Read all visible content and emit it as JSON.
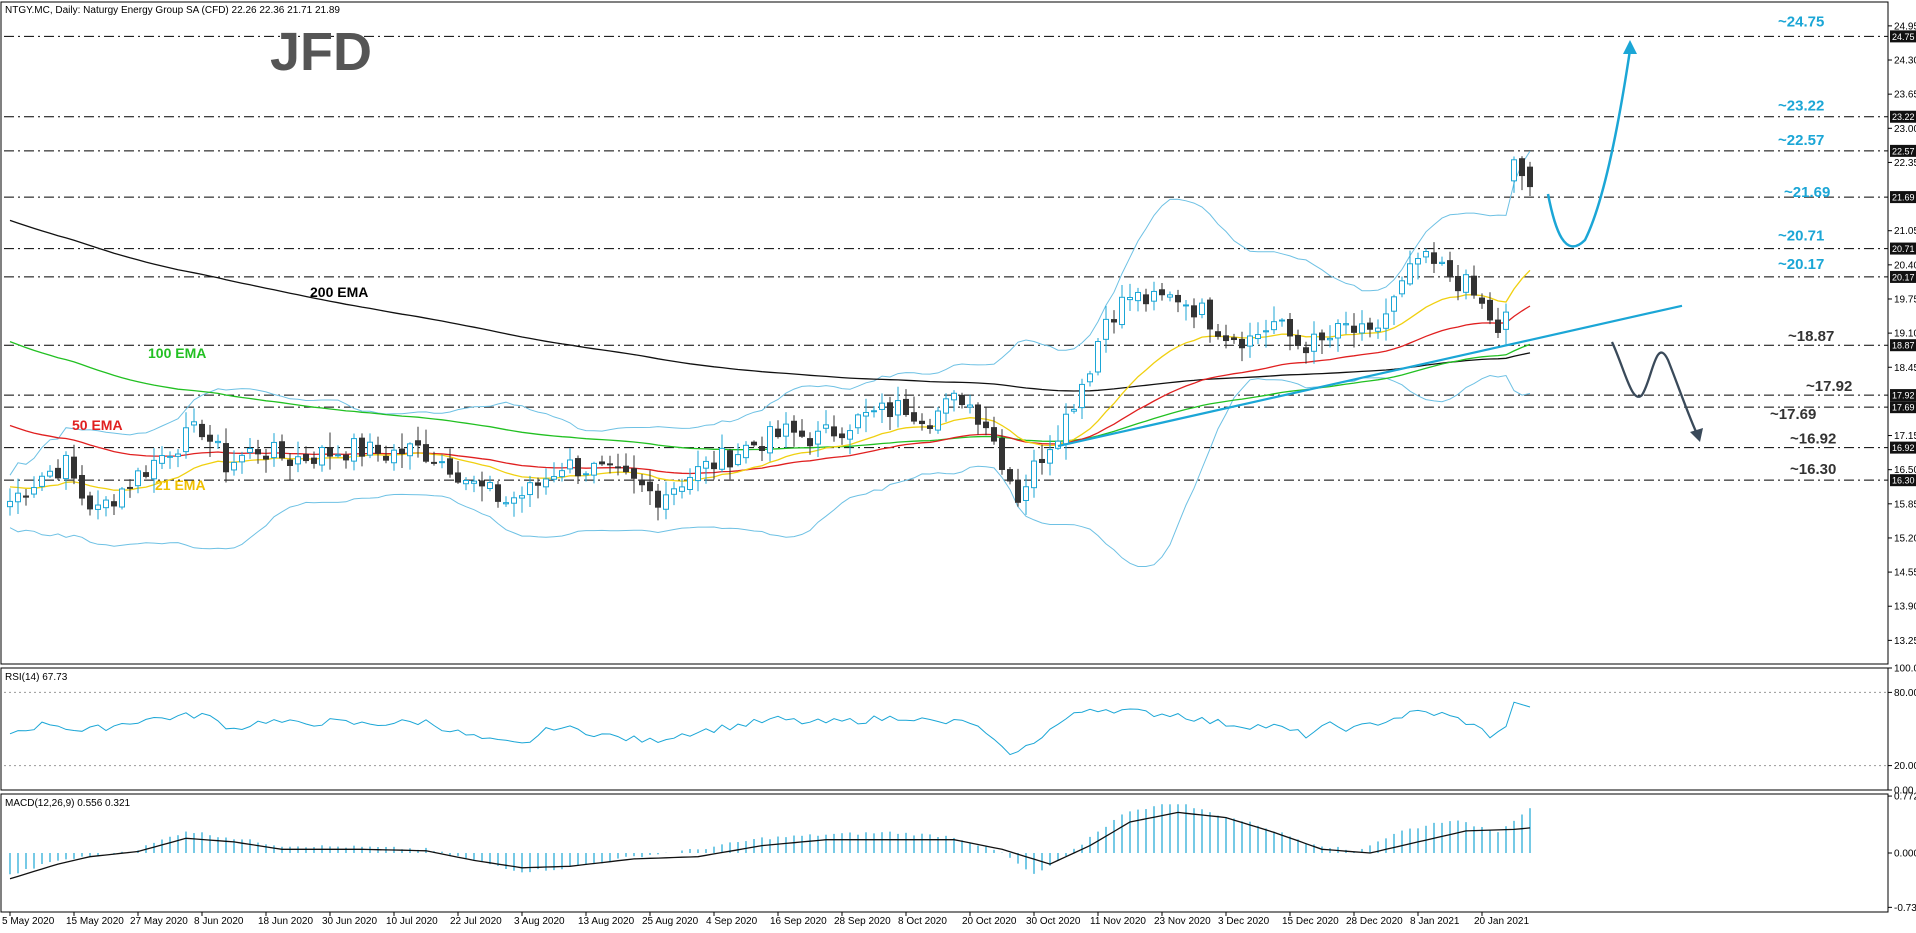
{
  "chart_data": {
    "type": "candlestick",
    "title": "NTGY.MC, Daily:  Naturgy Energy Group SA (CFD)  22.26 22.36 21.71 21.89",
    "logo_text": "JFD",
    "price_axis": {
      "min": 12.8,
      "max": 25.1,
      "ticks": [
        "24.95",
        "24.30",
        "23.65",
        "23.00",
        "22.35",
        "21.05",
        "20.40",
        "19.75",
        "19.10",
        "18.45",
        "17.15",
        "16.50",
        "15.85",
        "15.20",
        "14.55",
        "13.90",
        "13.25"
      ]
    },
    "x_labels": [
      {
        "i": 0,
        "label": "5 May 2020"
      },
      {
        "i": 8,
        "label": "15 May 2020"
      },
      {
        "i": 16,
        "label": "27 May 2020"
      },
      {
        "i": 24,
        "label": "8 Jun 2020"
      },
      {
        "i": 32,
        "label": "18 Jun 2020"
      },
      {
        "i": 40,
        "label": "30 Jun 2020"
      },
      {
        "i": 48,
        "label": "10 Jul 2020"
      },
      {
        "i": 56,
        "label": "22 Jul 2020"
      },
      {
        "i": 64,
        "label": "3 Aug 2020"
      },
      {
        "i": 72,
        "label": "13 Aug 2020"
      },
      {
        "i": 80,
        "label": "25 Aug 2020"
      },
      {
        "i": 88,
        "label": "4 Sep 2020"
      },
      {
        "i": 96,
        "label": "16 Sep 2020"
      },
      {
        "i": 104,
        "label": "28 Sep 2020"
      },
      {
        "i": 112,
        "label": "8 Oct 2020"
      },
      {
        "i": 120,
        "label": "20 Oct 2020"
      },
      {
        "i": 128,
        "label": "30 Oct 2020"
      },
      {
        "i": 136,
        "label": "11 Nov 2020"
      },
      {
        "i": 144,
        "label": "23 Nov 2020"
      },
      {
        "i": 152,
        "label": "3 Dec 2020"
      },
      {
        "i": 160,
        "label": "15 Dec 2020"
      },
      {
        "i": 168,
        "label": "28 Dec 2020"
      },
      {
        "i": 176,
        "label": "8 Jan 2021"
      },
      {
        "i": 184,
        "label": "20 Jan 2021"
      }
    ],
    "n_bars": 191,
    "close_anchors": [
      [
        0,
        15.9
      ],
      [
        4,
        16.4
      ],
      [
        7,
        16.6
      ],
      [
        9,
        16.0
      ],
      [
        11,
        15.7
      ],
      [
        13,
        16.0
      ],
      [
        16,
        16.4
      ],
      [
        20,
        16.9
      ],
      [
        24,
        17.3
      ],
      [
        27,
        16.6
      ],
      [
        31,
        16.9
      ],
      [
        35,
        16.7
      ],
      [
        39,
        16.8
      ],
      [
        43,
        16.9
      ],
      [
        47,
        16.8
      ],
      [
        51,
        16.9
      ],
      [
        55,
        16.6
      ],
      [
        58,
        16.2
      ],
      [
        62,
        15.9
      ],
      [
        65,
        16.1
      ],
      [
        69,
        16.6
      ],
      [
        73,
        16.5
      ],
      [
        77,
        16.3
      ],
      [
        81,
        16.0
      ],
      [
        85,
        16.4
      ],
      [
        89,
        16.7
      ],
      [
        93,
        17.0
      ],
      [
        97,
        17.2
      ],
      [
        101,
        17.1
      ],
      [
        105,
        17.4
      ],
      [
        109,
        17.6
      ],
      [
        112,
        17.7
      ],
      [
        115,
        17.5
      ],
      [
        119,
        17.9
      ],
      [
        122,
        17.4
      ],
      [
        124,
        16.7
      ],
      [
        126,
        16.0
      ],
      [
        129,
        16.8
      ],
      [
        132,
        17.5
      ],
      [
        135,
        18.5
      ],
      [
        137,
        19.4
      ],
      [
        140,
        19.8
      ],
      [
        143,
        19.7
      ],
      [
        146,
        19.8
      ],
      [
        149,
        19.5
      ],
      [
        152,
        19.1
      ],
      [
        155,
        19.0
      ],
      [
        158,
        19.3
      ],
      [
        161,
        18.9
      ],
      [
        164,
        18.9
      ],
      [
        167,
        19.2
      ],
      [
        170,
        19.0
      ],
      [
        173,
        19.7
      ],
      [
        176,
        20.5
      ],
      [
        179,
        20.3
      ],
      [
        182,
        20.0
      ],
      [
        185,
        19.4
      ],
      [
        186,
        19.0
      ],
      [
        187,
        19.5
      ],
      [
        188,
        22.4
      ],
      [
        189,
        22.1
      ],
      [
        190,
        21.89
      ]
    ],
    "ema_labels": [
      "200 EMA",
      "100 EMA",
      "50 EMA",
      "21 EMA"
    ],
    "levels": [
      {
        "value": 24.75,
        "label": "~24.75",
        "dash": true,
        "color": "#1ba6d6"
      },
      {
        "value": 23.22,
        "label": "~23.22",
        "dash": true,
        "color": "#1ba6d6"
      },
      {
        "value": 22.57,
        "label": "~22.57",
        "dash": true,
        "color": "#1ba6d6"
      },
      {
        "value": 21.69,
        "label": "~21.69",
        "dash": true,
        "color": "#1ba6d6"
      },
      {
        "value": 20.71,
        "label": "~20.71",
        "dash": true,
        "color": "#1ba6d6"
      },
      {
        "value": 20.17,
        "label": "~20.17",
        "dash": true,
        "color": "#1ba6d6"
      },
      {
        "value": 18.87,
        "label": "~18.87",
        "dash": true,
        "color": "#333333"
      },
      {
        "value": 17.92,
        "label": "~17.92",
        "dash": true,
        "color": "#333333"
      },
      {
        "value": 17.69,
        "label": "~17.69",
        "dash": true,
        "color": "#333333"
      },
      {
        "value": 16.92,
        "label": "~16.92",
        "dash": true,
        "color": "#333333"
      },
      {
        "value": 16.3,
        "label": "~16.30",
        "dash": true,
        "color": "#333333"
      }
    ],
    "axis_tags": [
      "24.75",
      "23.22",
      "22.57",
      "21.69",
      "20.71",
      "20.17",
      "18.87",
      "17.92",
      "17.69",
      "16.92",
      "16.30"
    ],
    "rsi": {
      "title": "RSI(14) 67.73",
      "ticks": [
        "100.00",
        "80.00",
        "20.00",
        "0.00"
      ],
      "min": 0,
      "max": 100,
      "anchors": [
        [
          0,
          47
        ],
        [
          5,
          55
        ],
        [
          9,
          48
        ],
        [
          13,
          53
        ],
        [
          17,
          58
        ],
        [
          21,
          60
        ],
        [
          24,
          62
        ],
        [
          28,
          50
        ],
        [
          32,
          57
        ],
        [
          36,
          54
        ],
        [
          40,
          56
        ],
        [
          44,
          54
        ],
        [
          48,
          55
        ],
        [
          52,
          56
        ],
        [
          56,
          47
        ],
        [
          60,
          40
        ],
        [
          64,
          37
        ],
        [
          68,
          52
        ],
        [
          72,
          48
        ],
        [
          76,
          43
        ],
        [
          80,
          40
        ],
        [
          84,
          46
        ],
        [
          88,
          50
        ],
        [
          92,
          54
        ],
        [
          96,
          58
        ],
        [
          100,
          55
        ],
        [
          104,
          56
        ],
        [
          108,
          58
        ],
        [
          112,
          60
        ],
        [
          116,
          55
        ],
        [
          120,
          56
        ],
        [
          122,
          45
        ],
        [
          124,
          33
        ],
        [
          126,
          30
        ],
        [
          129,
          45
        ],
        [
          132,
          58
        ],
        [
          135,
          67
        ],
        [
          138,
          66
        ],
        [
          142,
          63
        ],
        [
          146,
          62
        ],
        [
          150,
          56
        ],
        [
          154,
          53
        ],
        [
          158,
          52
        ],
        [
          162,
          45
        ],
        [
          165,
          53
        ],
        [
          168,
          50
        ],
        [
          172,
          57
        ],
        [
          176,
          64
        ],
        [
          179,
          62
        ],
        [
          182,
          56
        ],
        [
          185,
          45
        ],
        [
          187,
          52
        ],
        [
          188,
          72
        ],
        [
          190,
          68
        ]
      ]
    },
    "macd": {
      "title": "MACD(12,26,9) 0.556 0.321",
      "ticks": [
        "0.772",
        "0.000",
        "-0.737"
      ],
      "min": -0.8,
      "max": 0.8,
      "signal_anchors": [
        [
          0,
          -0.35
        ],
        [
          6,
          -0.15
        ],
        [
          10,
          -0.05
        ],
        [
          16,
          0.02
        ],
        [
          22,
          0.2
        ],
        [
          28,
          0.15
        ],
        [
          34,
          0.05
        ],
        [
          44,
          0.05
        ],
        [
          52,
          0.03
        ],
        [
          58,
          -0.1
        ],
        [
          64,
          -0.2
        ],
        [
          70,
          -0.18
        ],
        [
          78,
          -0.08
        ],
        [
          86,
          -0.05
        ],
        [
          94,
          0.1
        ],
        [
          102,
          0.18
        ],
        [
          110,
          0.18
        ],
        [
          118,
          0.18
        ],
        [
          124,
          0.05
        ],
        [
          130,
          -0.15
        ],
        [
          135,
          0.1
        ],
        [
          140,
          0.42
        ],
        [
          146,
          0.55
        ],
        [
          152,
          0.48
        ],
        [
          158,
          0.28
        ],
        [
          164,
          0.05
        ],
        [
          170,
          0.0
        ],
        [
          176,
          0.15
        ],
        [
          182,
          0.3
        ],
        [
          188,
          0.32
        ],
        [
          190,
          0.34
        ]
      ],
      "hist_anchors": [
        [
          0,
          -0.3
        ],
        [
          6,
          -0.1
        ],
        [
          10,
          -0.05
        ],
        [
          16,
          0.05
        ],
        [
          22,
          0.3
        ],
        [
          28,
          0.2
        ],
        [
          34,
          0.1
        ],
        [
          44,
          0.08
        ],
        [
          52,
          0.05
        ],
        [
          58,
          -0.1
        ],
        [
          64,
          -0.25
        ],
        [
          70,
          -0.2
        ],
        [
          78,
          -0.05
        ],
        [
          86,
          0.05
        ],
        [
          94,
          0.2
        ],
        [
          102,
          0.25
        ],
        [
          110,
          0.28
        ],
        [
          118,
          0.22
        ],
        [
          124,
          0.0
        ],
        [
          128,
          -0.3
        ],
        [
          132,
          -0.05
        ],
        [
          136,
          0.3
        ],
        [
          140,
          0.58
        ],
        [
          146,
          0.68
        ],
        [
          150,
          0.55
        ],
        [
          156,
          0.38
        ],
        [
          162,
          0.15
        ],
        [
          168,
          0.02
        ],
        [
          174,
          0.3
        ],
        [
          180,
          0.45
        ],
        [
          184,
          0.35
        ],
        [
          186,
          0.3
        ],
        [
          188,
          0.45
        ],
        [
          190,
          0.62
        ]
      ]
    },
    "colors": {
      "bull": "#1ba6d6",
      "bear": "#333333",
      "ema200": "#111111",
      "ema100": "#22c022",
      "ema50": "#e02020",
      "ema21": "#f0d010",
      "bands": "#6ec1e4",
      "trend": "#1ba6d6",
      "grid": "#000000"
    }
  }
}
